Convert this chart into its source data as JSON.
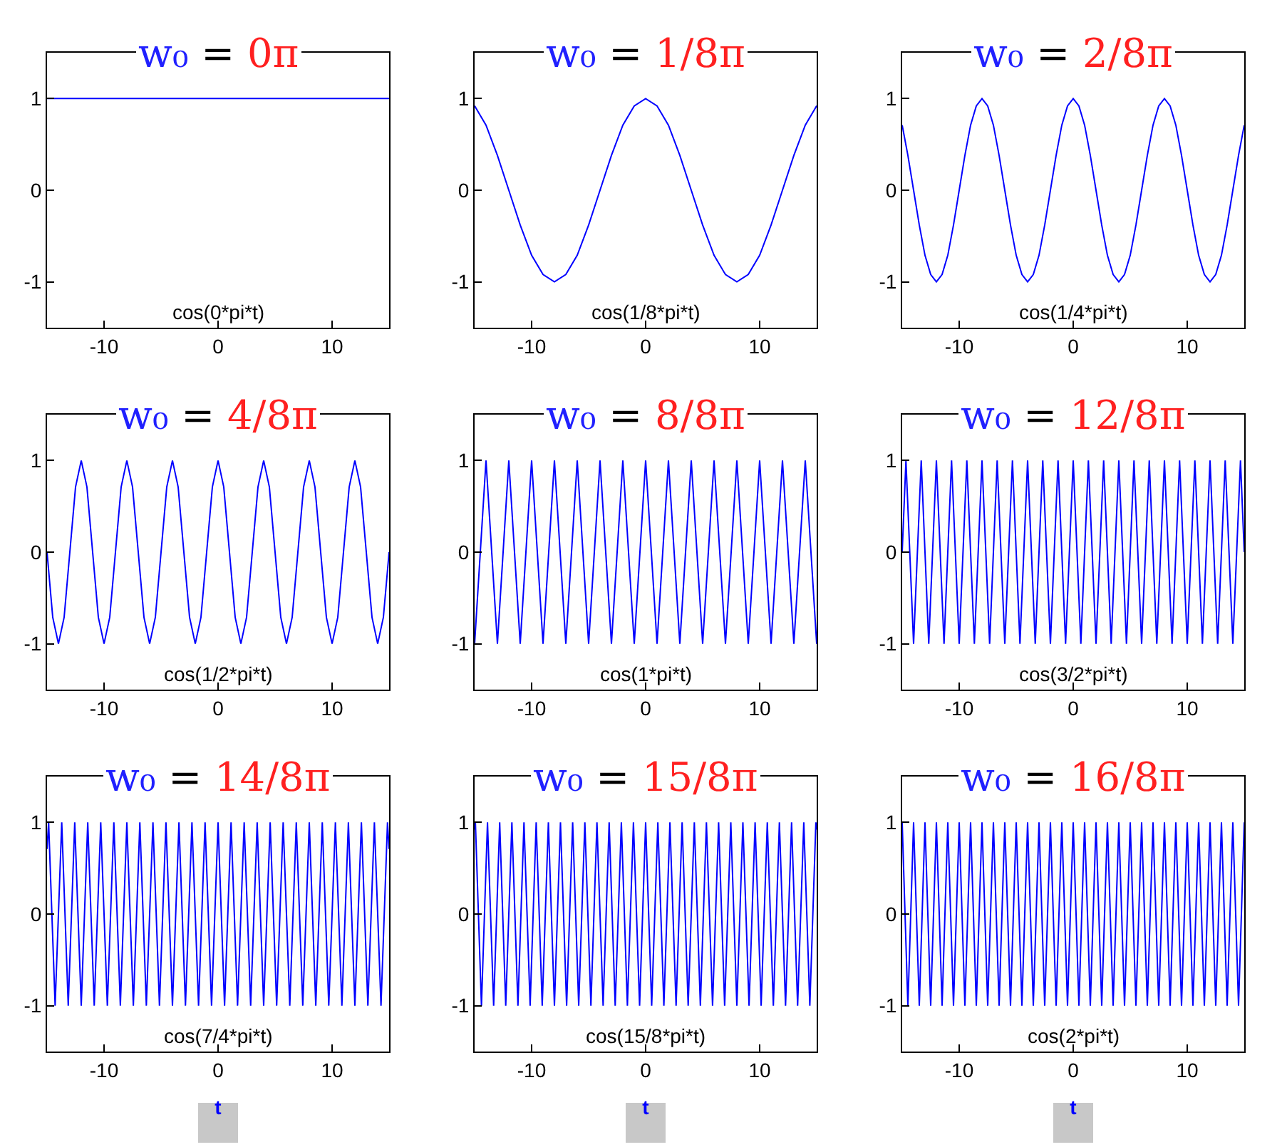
{
  "chart_data": [
    {
      "type": "line",
      "title": "w₀ = 0π",
      "annotations": [
        "cos(0*pi*t)"
      ],
      "xlim": [
        -15,
        15
      ],
      "xticks": [
        -10,
        0,
        10
      ],
      "ylim": [
        -1.5,
        1.5
      ],
      "yticks": [
        -1,
        0,
        1
      ],
      "series": [
        {
          "color": "#0000ff",
          "x": [
            -15,
            15
          ],
          "values": [
            1,
            1
          ]
        }
      ]
    },
    {
      "type": "line",
      "title": "w₀ = 1/8π",
      "annotations": [
        "cos(1/8*pi*t)"
      ],
      "xlim": [
        -15,
        15
      ],
      "xticks": [
        -10,
        0,
        10
      ],
      "ylim": [
        -1.5,
        1.5
      ],
      "yticks": [
        -1,
        0,
        1
      ],
      "series": [
        {
          "color": "#0000ff",
          "x": [
            -15,
            -14,
            -13,
            -12,
            -11,
            -10,
            -9,
            -8,
            -7,
            -6,
            -5,
            -4,
            -3,
            -2,
            -1,
            0,
            1,
            2,
            3,
            4,
            5,
            6,
            7,
            8,
            9,
            10,
            11,
            12,
            13,
            14,
            15
          ],
          "values": [
            0.92,
            0.71,
            0.38,
            0,
            -0.38,
            -0.71,
            -0.92,
            -1,
            -0.92,
            -0.71,
            -0.38,
            0,
            0.38,
            0.71,
            0.92,
            1,
            0.92,
            0.71,
            0.38,
            0,
            -0.38,
            -0.71,
            -0.92,
            -1,
            -0.92,
            -0.71,
            -0.38,
            0,
            0.38,
            0.71,
            0.92
          ]
        }
      ]
    },
    {
      "type": "line",
      "title": "w₀ = 2/8π",
      "annotations": [
        "cos(1/4*pi*t)"
      ],
      "xlim": [
        -15,
        15
      ],
      "xticks": [
        -10,
        0,
        10
      ],
      "ylim": [
        -1.5,
        1.5
      ],
      "yticks": [
        -1,
        0,
        1
      ],
      "series": [
        {
          "color": "#0000ff",
          "x": [
            -15,
            -14.5,
            -14,
            -13.5,
            -13,
            -12.5,
            -12,
            -11.5,
            -11,
            -10.5,
            -10,
            -9.5,
            -9,
            -8.5,
            -8,
            -7.5,
            -7,
            -6.5,
            -6,
            -5.5,
            -5,
            -4.5,
            -4,
            -3.5,
            -3,
            -2.5,
            -2,
            -1.5,
            -1,
            -0.5,
            0,
            0.5,
            1,
            1.5,
            2,
            2.5,
            3,
            3.5,
            4,
            4.5,
            5,
            5.5,
            6,
            6.5,
            7,
            7.5,
            8,
            8.5,
            9,
            9.5,
            10,
            10.5,
            11,
            11.5,
            12,
            12.5,
            13,
            13.5,
            14,
            14.5,
            15
          ],
          "values": [
            0.71,
            0.38,
            0,
            -0.38,
            -0.71,
            -0.92,
            -1,
            -0.92,
            -0.71,
            -0.38,
            0,
            0.38,
            0.71,
            0.92,
            1,
            0.92,
            0.71,
            0.38,
            0,
            -0.38,
            -0.71,
            -0.92,
            -1,
            -0.92,
            -0.71,
            -0.38,
            0,
            0.38,
            0.71,
            0.92,
            1,
            0.92,
            0.71,
            0.38,
            0,
            -0.38,
            -0.71,
            -0.92,
            -1,
            -0.92,
            -0.71,
            -0.38,
            0,
            0.38,
            0.71,
            0.92,
            1,
            0.92,
            0.71,
            0.38,
            0,
            -0.38,
            -0.71,
            -0.92,
            -1,
            -0.92,
            -0.71,
            -0.38,
            0,
            0.38,
            0.71
          ]
        }
      ]
    },
    {
      "type": "line",
      "title": "w₀ = 4/8π",
      "annotations": [
        "cos(1/2*pi*t)"
      ],
      "xlim": [
        -15,
        15
      ],
      "xticks": [
        -10,
        0,
        10
      ],
      "ylim": [
        -1.5,
        1.5
      ],
      "yticks": [
        -1,
        0,
        1
      ],
      "series": [
        {
          "color": "#0000ff",
          "x": [
            -15,
            -14.5,
            -14,
            -13.5,
            -13,
            -12.5,
            -12,
            -11.5,
            -11,
            -10.5,
            -10,
            -9.5,
            -9,
            -8.5,
            -8,
            -7.5,
            -7,
            -6.5,
            -6,
            -5.5,
            -5,
            -4.5,
            -4,
            -3.5,
            -3,
            -2.5,
            -2,
            -1.5,
            -1,
            -0.5,
            0,
            0.5,
            1,
            1.5,
            2,
            2.5,
            3,
            3.5,
            4,
            4.5,
            5,
            5.5,
            6,
            6.5,
            7,
            7.5,
            8,
            8.5,
            9,
            9.5,
            10,
            10.5,
            11,
            11.5,
            12,
            12.5,
            13,
            13.5,
            14,
            14.5,
            15
          ],
          "values": [
            0,
            -0.71,
            -1,
            -0.71,
            0,
            0.71,
            1,
            0.71,
            0,
            -0.71,
            -1,
            -0.71,
            0,
            0.71,
            1,
            0.71,
            0,
            -0.71,
            -1,
            -0.71,
            0,
            0.71,
            1,
            0.71,
            0,
            -0.71,
            -1,
            -0.71,
            0,
            0.71,
            1,
            0.71,
            0,
            -0.71,
            -1,
            -0.71,
            0,
            0.71,
            1,
            0.71,
            0,
            -0.71,
            -1,
            -0.71,
            0,
            0.71,
            1,
            0.71,
            0,
            -0.71,
            -1,
            -0.71,
            0,
            0.71,
            1,
            0.71,
            0,
            -0.71,
            -1,
            -0.71,
            0
          ]
        }
      ]
    },
    {
      "type": "line",
      "title": "w₀ = 8/8π",
      "annotations": [
        "cos(1*pi*t)"
      ],
      "xlim": [
        -15,
        15
      ],
      "xticks": [
        -10,
        0,
        10
      ],
      "ylim": [
        -1.5,
        1.5
      ],
      "yticks": [
        -1,
        0,
        1
      ],
      "series": [
        {
          "color": "#0000ff",
          "x": [
            -15,
            -14,
            -13,
            -12,
            -11,
            -10,
            -9,
            -8,
            -7,
            -6,
            -5,
            -4,
            -3,
            -2,
            -1,
            0,
            1,
            2,
            3,
            4,
            5,
            6,
            7,
            8,
            9,
            10,
            11,
            12,
            13,
            14,
            15
          ],
          "values": [
            -1,
            1,
            -1,
            1,
            -1,
            1,
            -1,
            1,
            -1,
            1,
            -1,
            1,
            -1,
            1,
            -1,
            1,
            -1,
            1,
            -1,
            1,
            -1,
            1,
            -1,
            1,
            -1,
            1,
            -1,
            1,
            -1,
            1,
            -1
          ]
        }
      ]
    },
    {
      "type": "line",
      "title": "w₀ = 12/8π",
      "annotations": [
        "cos(3/2*pi*t)"
      ],
      "xlim": [
        -15,
        15
      ],
      "xticks": [
        -10,
        0,
        10
      ],
      "ylim": [
        -1.5,
        1.5
      ],
      "yticks": [
        -1,
        0,
        1
      ],
      "series": [
        {
          "color": "#0000ff",
          "x": [
            -15,
            -14.67,
            -14,
            -13.33,
            -12.67,
            -12,
            -11.33,
            -10.67,
            -10,
            -9.33,
            -8.67,
            -8,
            -7.33,
            -6.67,
            -6,
            -5.33,
            -4.67,
            -4,
            -3.33,
            -2.67,
            -2,
            -1.33,
            -0.67,
            0,
            0.67,
            1.33,
            2,
            2.67,
            3.33,
            4,
            4.67,
            5.33,
            6,
            6.67,
            7.33,
            8,
            8.67,
            9.33,
            10,
            10.67,
            11.33,
            12,
            12.67,
            13.33,
            14,
            14.67,
            15
          ],
          "values": [
            0,
            1,
            -1,
            1,
            -1,
            1,
            -1,
            1,
            -1,
            1,
            -1,
            1,
            -1,
            1,
            -1,
            1,
            -1,
            1,
            -1,
            1,
            -1,
            1,
            -1,
            1,
            -1,
            1,
            -1,
            1,
            -1,
            1,
            -1,
            1,
            -1,
            1,
            -1,
            1,
            -1,
            1,
            -1,
            1,
            -1,
            1,
            -1,
            1,
            -1,
            1,
            0
          ]
        }
      ]
    },
    {
      "type": "line",
      "title": "w₀ = 14/8π",
      "annotations": [
        "cos(7/4*pi*t)"
      ],
      "xlabel": "t",
      "xlim": [
        -15,
        15
      ],
      "xticks": [
        -10,
        0,
        10
      ],
      "ylim": [
        -1.5,
        1.5
      ],
      "yticks": [
        -1,
        0,
        1
      ],
      "series": [
        {
          "color": "#0000ff",
          "x": [
            -15,
            -14.86,
            -14.29,
            -13.71,
            -13.14,
            -12.57,
            -12,
            -11.43,
            -10.86,
            -10.29,
            -9.71,
            -9.14,
            -8.57,
            -8,
            -7.43,
            -6.86,
            -6.29,
            -5.71,
            -5.14,
            -4.57,
            -4,
            -3.43,
            -2.86,
            -2.29,
            -1.71,
            -1.14,
            -0.57,
            0,
            0.57,
            1.14,
            1.71,
            2.29,
            2.86,
            3.43,
            4,
            4.57,
            5.14,
            5.71,
            6.29,
            6.86,
            7.43,
            8,
            8.57,
            9.14,
            9.71,
            10.29,
            10.86,
            11.43,
            12,
            12.57,
            13.14,
            13.71,
            14.29,
            14.86,
            15
          ],
          "values": [
            0.71,
            1,
            -1,
            1,
            -1,
            1,
            -1,
            1,
            -1,
            1,
            -1,
            1,
            -1,
            1,
            -1,
            1,
            -1,
            1,
            -1,
            1,
            -1,
            1,
            -1,
            1,
            -1,
            1,
            -1,
            1,
            -1,
            1,
            -1,
            1,
            -1,
            1,
            -1,
            1,
            -1,
            1,
            -1,
            1,
            -1,
            1,
            -1,
            1,
            -1,
            1,
            -1,
            1,
            -1,
            1,
            -1,
            1,
            -1,
            1,
            0.71
          ]
        }
      ]
    },
    {
      "type": "line",
      "title": "w₀ = 15/8π",
      "annotations": [
        "cos(15/8*pi*t)"
      ],
      "xlabel": "t",
      "xlim": [
        -15,
        15
      ],
      "xticks": [
        -10,
        0,
        10
      ],
      "ylim": [
        -1.5,
        1.5
      ],
      "yticks": [
        -1,
        0,
        1
      ],
      "series": [
        {
          "color": "#0000ff",
          "x": [
            -15,
            -14.93,
            -14.4,
            -13.87,
            -13.33,
            -12.8,
            -12.27,
            -11.73,
            -11.2,
            -10.67,
            -10.13,
            -9.6,
            -9.07,
            -8.53,
            -8,
            -7.47,
            -6.93,
            -6.4,
            -5.87,
            -5.33,
            -4.8,
            -4.27,
            -3.73,
            -3.2,
            -2.67,
            -2.13,
            -1.6,
            -1.07,
            -0.53,
            0,
            0.53,
            1.07,
            1.6,
            2.13,
            2.67,
            3.2,
            3.73,
            4.27,
            4.8,
            5.33,
            5.87,
            6.4,
            6.93,
            7.47,
            8,
            8.53,
            9.07,
            9.6,
            10.13,
            10.67,
            11.2,
            11.73,
            12.27,
            12.8,
            13.33,
            13.87,
            14.4,
            14.93,
            15
          ],
          "values": [
            0.92,
            1,
            -1,
            1,
            -1,
            1,
            -1,
            1,
            -1,
            1,
            -1,
            1,
            -1,
            1,
            -1,
            1,
            -1,
            1,
            -1,
            1,
            -1,
            1,
            -1,
            1,
            -1,
            1,
            -1,
            1,
            -1,
            1,
            -1,
            1,
            -1,
            1,
            -1,
            1,
            -1,
            1,
            -1,
            1,
            -1,
            1,
            -1,
            1,
            -1,
            1,
            -1,
            1,
            -1,
            1,
            -1,
            1,
            -1,
            1,
            -1,
            1,
            -1,
            1,
            0.92
          ]
        }
      ]
    },
    {
      "type": "line",
      "title": "w₀ = 16/8π",
      "annotations": [
        "cos(2*pi*t)"
      ],
      "xlabel": "t",
      "xlim": [
        -15,
        15
      ],
      "xticks": [
        -10,
        0,
        10
      ],
      "ylim": [
        -1.5,
        1.5
      ],
      "yticks": [
        -1,
        0,
        1
      ],
      "series": [
        {
          "color": "#0000ff",
          "x": [
            -15,
            -14.5,
            -14,
            -13.5,
            -13,
            -12.5,
            -12,
            -11.5,
            -11,
            -10.5,
            -10,
            -9.5,
            -9,
            -8.5,
            -8,
            -7.5,
            -7,
            -6.5,
            -6,
            -5.5,
            -5,
            -4.5,
            -4,
            -3.5,
            -3,
            -2.5,
            -2,
            -1.5,
            -1,
            -0.5,
            0,
            0.5,
            1,
            1.5,
            2,
            2.5,
            3,
            3.5,
            4,
            4.5,
            5,
            5.5,
            6,
            6.5,
            7,
            7.5,
            8,
            8.5,
            9,
            9.5,
            10,
            10.5,
            11,
            11.5,
            12,
            12.5,
            13,
            13.5,
            14,
            14.5,
            15
          ],
          "values": [
            1,
            -1,
            1,
            -1,
            1,
            -1,
            1,
            -1,
            1,
            -1,
            1,
            -1,
            1,
            -1,
            1,
            -1,
            1,
            -1,
            1,
            -1,
            1,
            -1,
            1,
            -1,
            1,
            -1,
            1,
            -1,
            1,
            -1,
            1,
            -1,
            1,
            -1,
            1,
            -1,
            1,
            -1,
            1,
            -1,
            1,
            -1,
            1,
            -1,
            1,
            -1,
            1,
            -1,
            1,
            -1,
            1,
            -1,
            1,
            -1,
            1,
            -1,
            1,
            -1,
            1,
            -1,
            1
          ]
        }
      ]
    }
  ]
}
